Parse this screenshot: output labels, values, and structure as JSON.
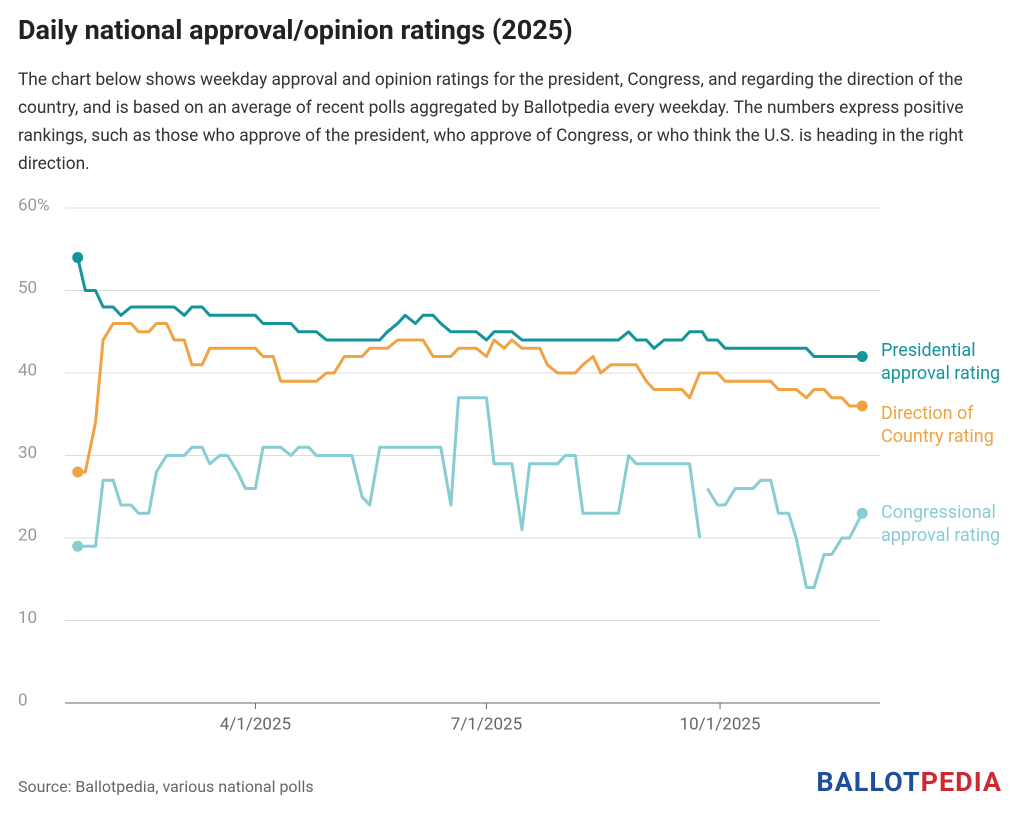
{
  "chart_data": {
    "type": "line",
    "title": "Daily national approval/opinion ratings (2025)",
    "subtitle": "The chart below shows weekday approval and opinion ratings for the president, Congress, and regarding the direction of the country, and is based on an average of recent polls aggregated by Ballotpedia every weekday. The numbers express positive rankings, such as those who approve of the president, who approve of Congress, or who think the U.S. is heading in the right direction.",
    "source": "Source: Ballotpedia, various national polls",
    "logo": [
      "BALLOT",
      "PEDIA"
    ],
    "x": [
      "1/21/2025",
      "1/24/2025",
      "1/28/2025",
      "1/31/2025",
      "2/4/2025",
      "2/7/2025",
      "2/11/2025",
      "2/14/2025",
      "2/18/2025",
      "2/21/2025",
      "2/25/2025",
      "2/28/2025",
      "3/4/2025",
      "3/7/2025",
      "3/11/2025",
      "3/14/2025",
      "3/18/2025",
      "3/21/2025",
      "3/25/2025",
      "3/28/2025",
      "4/1/2025",
      "4/4/2025",
      "4/8/2025",
      "4/11/2025",
      "4/15/2025",
      "4/18/2025",
      "4/22/2025",
      "4/25/2025",
      "4/29/2025",
      "5/2/2025",
      "5/6/2025",
      "5/9/2025",
      "5/13/2025",
      "5/16/2025",
      "5/20/2025",
      "5/23/2025",
      "5/27/2025",
      "5/30/2025",
      "6/3/2025",
      "6/6/2025",
      "6/10/2025",
      "6/13/2025",
      "6/17/2025",
      "6/20/2025",
      "6/24/2025",
      "6/27/2025",
      "7/1/2025",
      "7/4/2025",
      "7/8/2025",
      "7/11/2025",
      "7/15/2025",
      "7/18/2025",
      "7/22/2025",
      "7/25/2025",
      "7/29/2025",
      "8/1/2025",
      "8/5/2025",
      "8/8/2025",
      "8/12/2025",
      "8/15/2025",
      "8/19/2025",
      "8/22/2025",
      "8/26/2025",
      "8/29/2025",
      "9/2/2025",
      "9/5/2025",
      "9/9/2025",
      "9/12/2025",
      "9/16/2025",
      "9/19/2025",
      "9/23/2025",
      "9/24/2025",
      "9/26/2025",
      "9/30/2025",
      "10/3/2025",
      "10/7/2025",
      "10/10/2025",
      "10/14/2025",
      "10/17/2025",
      "10/21/2025",
      "10/24/2025",
      "10/28/2025",
      "10/31/2025",
      "11/4/2025",
      "11/7/2025",
      "11/11/2025",
      "11/14/2025",
      "11/18/2025",
      "11/21/2025",
      "11/26/2025"
    ],
    "series": [
      {
        "name": "Presidential approval rating",
        "color": "#14959c",
        "values": [
          54,
          50,
          50,
          48,
          48,
          47,
          48,
          48,
          48,
          48,
          48,
          48,
          47,
          48,
          48,
          47,
          47,
          47,
          47,
          47,
          47,
          46,
          46,
          46,
          46,
          45,
          45,
          45,
          44,
          44,
          44,
          44,
          44,
          44,
          44,
          45,
          46,
          47,
          46,
          47,
          47,
          46,
          45,
          45,
          45,
          45,
          44,
          45,
          45,
          45,
          44,
          44,
          44,
          44,
          44,
          44,
          44,
          44,
          44,
          44,
          44,
          44,
          45,
          44,
          44,
          43,
          44,
          44,
          44,
          45,
          45,
          45,
          44,
          44,
          43,
          43,
          43,
          43,
          43,
          43,
          43,
          43,
          43,
          43,
          42,
          42,
          42,
          42,
          42,
          42
        ]
      },
      {
        "name": "Direction of Country rating",
        "color": "#f0a340",
        "values": [
          28,
          28,
          34,
          44,
          46,
          46,
          46,
          45,
          45,
          46,
          46,
          44,
          44,
          41,
          41,
          43,
          43,
          43,
          43,
          43,
          43,
          42,
          42,
          39,
          39,
          39,
          39,
          39,
          40,
          40,
          42,
          42,
          42,
          43,
          43,
          43,
          44,
          44,
          44,
          44,
          42,
          42,
          42,
          43,
          43,
          43,
          42,
          44,
          43,
          44,
          43,
          43,
          43,
          41,
          40,
          40,
          40,
          41,
          42,
          40,
          41,
          41,
          41,
          41,
          39,
          38,
          38,
          38,
          38,
          37,
          40,
          40,
          40,
          40,
          39,
          39,
          39,
          39,
          39,
          39,
          38,
          38,
          38,
          37,
          38,
          38,
          37,
          37,
          36,
          36
        ]
      },
      {
        "name": "Congressional approval rating",
        "color": "#88ccd4",
        "values": [
          19,
          19,
          19,
          27,
          27,
          24,
          24,
          23,
          23,
          28,
          30,
          30,
          30,
          31,
          31,
          29,
          30,
          30,
          28,
          26,
          26,
          31,
          31,
          31,
          30,
          31,
          31,
          30,
          30,
          30,
          30,
          30,
          25,
          24,
          31,
          31,
          31,
          31,
          31,
          31,
          31,
          31,
          24,
          37,
          37,
          37,
          37,
          29,
          29,
          29,
          21,
          29,
          29,
          29,
          29,
          30,
          30,
          23,
          23,
          23,
          23,
          23,
          30,
          29,
          29,
          29,
          29,
          29,
          29,
          29,
          20,
          null,
          26,
          24,
          24,
          26,
          26,
          26,
          27,
          27,
          23,
          23,
          20,
          14,
          14,
          18,
          18,
          20,
          20,
          23
        ]
      }
    ],
    "xlim": [
      "1/16/2025",
      "12/3/2025"
    ],
    "xticks": [
      "4/1/2025",
      "7/1/2025",
      "10/1/2025"
    ],
    "ylim": [
      0,
      60
    ],
    "yticks": [
      0,
      10,
      20,
      30,
      40,
      50,
      {
        "value": 60,
        "label": "60%"
      }
    ],
    "grid": true
  }
}
